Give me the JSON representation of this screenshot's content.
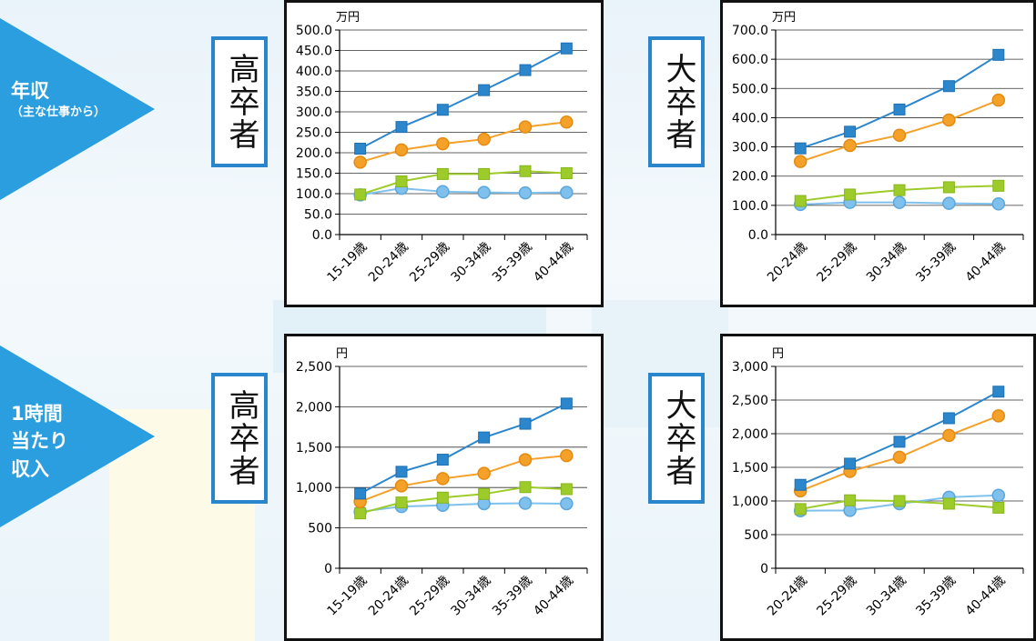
{
  "left_labels": {
    "income": {
      "title": "年収",
      "sub": "（主な仕事から）"
    },
    "hourly": {
      "line1": "1時間",
      "line2": "当たり",
      "line3": "収入"
    }
  },
  "panel_labels": {
    "high_school": "高卒者",
    "college": "大卒者"
  },
  "colors": {
    "arrow": "#2a9ede",
    "series": [
      "#2b86cc",
      "#f4a12a",
      "#9dcc2a",
      "#7fc1ec"
    ],
    "series_dark": [
      "#1e6fb0",
      "#e58a10",
      "#86b51c",
      "#5aa6dd"
    ]
  },
  "chart_data": [
    {
      "id": "hs-annual",
      "type": "line",
      "unit": "万円",
      "ylim": [
        0,
        500
      ],
      "yticks": [
        "500.0",
        "450.0",
        "400.0",
        "350.0",
        "300.0",
        "250.0",
        "200.0",
        "150.0",
        "100.0",
        "50.0",
        "0.0"
      ],
      "categories": [
        "15-19歳",
        "20-24歳",
        "25-29歳",
        "30-34歳",
        "35-39歳",
        "40-44歳"
      ],
      "series": [
        {
          "marker": "square",
          "values": [
            210,
            263,
            305,
            353,
            402,
            455
          ]
        },
        {
          "marker": "circle",
          "values": [
            177,
            207,
            222,
            233,
            263,
            275
          ]
        },
        {
          "marker": "square",
          "values": [
            98,
            130,
            148,
            148,
            155,
            150
          ]
        },
        {
          "marker": "circle",
          "values": [
            97,
            113,
            105,
            103,
            102,
            103
          ]
        }
      ]
    },
    {
      "id": "col-annual",
      "type": "line",
      "unit": "万円",
      "ylim": [
        0,
        700
      ],
      "yticks": [
        "700.0",
        "600.0",
        "500.0",
        "400.0",
        "300.0",
        "200.0",
        "100.0",
        "0.0"
      ],
      "categories": [
        "20-24歳",
        "25-29歳",
        "30-34歳",
        "35-39歳",
        "40-44歳"
      ],
      "series": [
        {
          "marker": "square",
          "values": [
            295,
            352,
            428,
            508,
            615
          ]
        },
        {
          "marker": "circle",
          "values": [
            250,
            305,
            340,
            392,
            460
          ]
        },
        {
          "marker": "square",
          "values": [
            115,
            137,
            152,
            162,
            167
          ]
        },
        {
          "marker": "circle",
          "values": [
            103,
            110,
            110,
            107,
            105
          ]
        }
      ]
    },
    {
      "id": "hs-hourly",
      "type": "line",
      "unit": "円",
      "ylim": [
        0,
        2500
      ],
      "yticks": [
        "2,500",
        "2,000",
        "1,500",
        "1,000",
        "500",
        "0"
      ],
      "categories": [
        "15-19歳",
        "20-24歳",
        "25-29歳",
        "30-34歳",
        "35-39歳",
        "40-44歳"
      ],
      "series": [
        {
          "marker": "square",
          "values": [
            925,
            1195,
            1345,
            1620,
            1790,
            2040
          ]
        },
        {
          "marker": "circle",
          "values": [
            825,
            1020,
            1110,
            1175,
            1345,
            1395
          ]
        },
        {
          "marker": "square",
          "values": [
            680,
            815,
            875,
            920,
            1005,
            980
          ]
        },
        {
          "marker": "circle",
          "values": [
            700,
            765,
            780,
            800,
            805,
            800
          ]
        }
      ]
    },
    {
      "id": "col-hourly",
      "type": "line",
      "unit": "円",
      "ylim": [
        0,
        3000
      ],
      "yticks": [
        "3,000",
        "2,500",
        "2,000",
        "1,500",
        "1,000",
        "500",
        "0"
      ],
      "categories": [
        "20-24歳",
        "25-29歳",
        "30-34歳",
        "35-39歳",
        "40-44歳"
      ],
      "series": [
        {
          "marker": "square",
          "values": [
            1240,
            1555,
            1880,
            2230,
            2625
          ]
        },
        {
          "marker": "circle",
          "values": [
            1150,
            1440,
            1650,
            1975,
            2265
          ]
        },
        {
          "marker": "square",
          "values": [
            880,
            1010,
            1000,
            960,
            900
          ]
        },
        {
          "marker": "circle",
          "values": [
            855,
            860,
            960,
            1055,
            1085
          ]
        }
      ]
    }
  ]
}
